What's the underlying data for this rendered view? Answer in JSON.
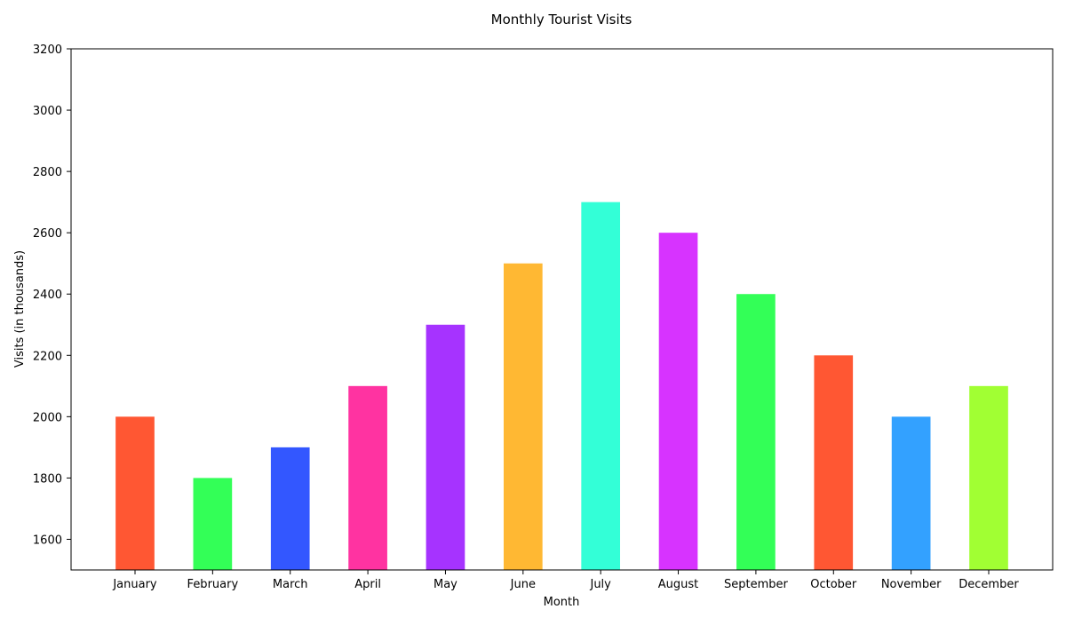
{
  "chart_data": {
    "type": "bar",
    "title": "Monthly Tourist Visits",
    "xlabel": "Month",
    "ylabel": "Visits (in thousands)",
    "categories": [
      "January",
      "February",
      "March",
      "April",
      "May",
      "June",
      "July",
      "August",
      "September",
      "October",
      "November",
      "December"
    ],
    "values": [
      2000,
      1800,
      1900,
      2100,
      2300,
      2500,
      2700,
      2600,
      2400,
      2200,
      2000,
      2100
    ],
    "colors": [
      "#FF5733",
      "#33FF57",
      "#3357FF",
      "#FF33A1",
      "#A633FF",
      "#FFB833",
      "#33FFD7",
      "#D733FF",
      "#33FF57",
      "#FF5733",
      "#33A1FF",
      "#A1FF33"
    ],
    "ylim": [
      1500,
      3200
    ],
    "yticks": [
      1600,
      1800,
      2000,
      2200,
      2400,
      2600,
      2800,
      3000,
      3200
    ],
    "grid": false,
    "legend": "none"
  }
}
